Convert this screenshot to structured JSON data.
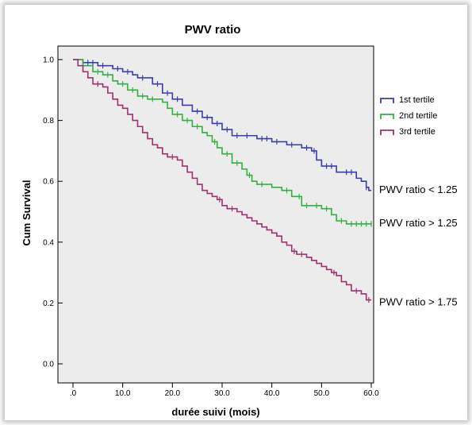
{
  "chart_data": {
    "type": "line",
    "subtype": "kaplan-meier step",
    "title": "PWV ratio",
    "xlabel": "durée suivi (mois)",
    "ylabel": "Cum Survival",
    "xlim": [
      0,
      60
    ],
    "ylim": [
      0,
      1
    ],
    "x_ticks": [
      0,
      10,
      20,
      30,
      40,
      50,
      60
    ],
    "x_tick_labels": [
      ".0",
      "10.0",
      "20.0",
      "30.0",
      "40.0",
      "50.0",
      "60.0"
    ],
    "y_ticks": [
      0,
      0.2,
      0.4,
      0.6,
      0.8,
      1.0
    ],
    "y_tick_labels": [
      "0.0",
      "0.2",
      "0.4",
      "0.6",
      "0.8",
      "1.0"
    ],
    "grid": false,
    "plot_background": "#ececec",
    "legend_position": "right",
    "series": [
      {
        "name": "1st tertile",
        "color": "#3a3db0",
        "points": [
          [
            0,
            1.0
          ],
          [
            2,
            0.99
          ],
          [
            5,
            0.98
          ],
          [
            8,
            0.97
          ],
          [
            10,
            0.96
          ],
          [
            12,
            0.95
          ],
          [
            13,
            0.94
          ],
          [
            16,
            0.92
          ],
          [
            18,
            0.89
          ],
          [
            20,
            0.87
          ],
          [
            22,
            0.85
          ],
          [
            24,
            0.83
          ],
          [
            26,
            0.81
          ],
          [
            28,
            0.79
          ],
          [
            30,
            0.77
          ],
          [
            32,
            0.75
          ],
          [
            37,
            0.74
          ],
          [
            40,
            0.73
          ],
          [
            43,
            0.72
          ],
          [
            46,
            0.71
          ],
          [
            48,
            0.7
          ],
          [
            49,
            0.67
          ],
          [
            50,
            0.65
          ],
          [
            53,
            0.63
          ],
          [
            57,
            0.61
          ],
          [
            58,
            0.6
          ],
          [
            59,
            0.58
          ],
          [
            59.5,
            0.57
          ],
          [
            60,
            0.57
          ]
        ],
        "censor_x": [
          3,
          4,
          6,
          9,
          11,
          14,
          17,
          19,
          21,
          25,
          27,
          29,
          31,
          33,
          35,
          38,
          39,
          41,
          44,
          47,
          48.5,
          51,
          52,
          55,
          56,
          59
        ]
      },
      {
        "name": "2nd tertile",
        "color": "#33b040",
        "points": [
          [
            0,
            1.0
          ],
          [
            2,
            0.98
          ],
          [
            4,
            0.96
          ],
          [
            6,
            0.95
          ],
          [
            8,
            0.93
          ],
          [
            9,
            0.92
          ],
          [
            11,
            0.9
          ],
          [
            13,
            0.88
          ],
          [
            15,
            0.87
          ],
          [
            18,
            0.86
          ],
          [
            19,
            0.84
          ],
          [
            20,
            0.82
          ],
          [
            22,
            0.8
          ],
          [
            24,
            0.78
          ],
          [
            26,
            0.76
          ],
          [
            27,
            0.75
          ],
          [
            28,
            0.73
          ],
          [
            29,
            0.71
          ],
          [
            30,
            0.69
          ],
          [
            32,
            0.66
          ],
          [
            34,
            0.64
          ],
          [
            35,
            0.62
          ],
          [
            36,
            0.6
          ],
          [
            37,
            0.59
          ],
          [
            40,
            0.58
          ],
          [
            42,
            0.57
          ],
          [
            44,
            0.55
          ],
          [
            45,
            0.55
          ],
          [
            46,
            0.52
          ],
          [
            50,
            0.51
          ],
          [
            52,
            0.49
          ],
          [
            53,
            0.47
          ],
          [
            55,
            0.46
          ],
          [
            60,
            0.46
          ]
        ],
        "censor_x": [
          5,
          7,
          10,
          12,
          14,
          16,
          21,
          23,
          25,
          28.5,
          31,
          33,
          35.5,
          38,
          43,
          45.5,
          47,
          49,
          51,
          54,
          56,
          57,
          58,
          59,
          60
        ]
      },
      {
        "name": "3rd tertile",
        "color": "#a0306f",
        "points": [
          [
            0,
            1.0
          ],
          [
            1,
            0.98
          ],
          [
            2,
            0.96
          ],
          [
            3,
            0.94
          ],
          [
            4,
            0.92
          ],
          [
            6,
            0.91
          ],
          [
            7,
            0.89
          ],
          [
            8,
            0.87
          ],
          [
            9,
            0.85
          ],
          [
            10,
            0.84
          ],
          [
            11,
            0.82
          ],
          [
            12,
            0.8
          ],
          [
            13,
            0.78
          ],
          [
            14,
            0.76
          ],
          [
            15,
            0.74
          ],
          [
            16,
            0.72
          ],
          [
            17,
            0.71
          ],
          [
            18,
            0.69
          ],
          [
            19,
            0.68
          ],
          [
            21,
            0.67
          ],
          [
            22,
            0.65
          ],
          [
            23,
            0.63
          ],
          [
            24,
            0.61
          ],
          [
            25,
            0.59
          ],
          [
            26,
            0.57
          ],
          [
            27,
            0.56
          ],
          [
            28,
            0.55
          ],
          [
            29,
            0.54
          ],
          [
            30,
            0.52
          ],
          [
            31,
            0.51
          ],
          [
            33,
            0.5
          ],
          [
            34,
            0.49
          ],
          [
            35,
            0.48
          ],
          [
            36,
            0.47
          ],
          [
            37,
            0.46
          ],
          [
            38,
            0.45
          ],
          [
            39,
            0.44
          ],
          [
            40,
            0.43
          ],
          [
            41,
            0.42
          ],
          [
            42,
            0.4
          ],
          [
            43,
            0.39
          ],
          [
            44,
            0.37
          ],
          [
            45,
            0.36
          ],
          [
            47,
            0.35
          ],
          [
            48,
            0.34
          ],
          [
            49,
            0.33
          ],
          [
            50,
            0.32
          ],
          [
            51,
            0.31
          ],
          [
            52,
            0.3
          ],
          [
            53,
            0.29
          ],
          [
            54,
            0.27
          ],
          [
            55,
            0.26
          ],
          [
            56,
            0.24
          ],
          [
            58,
            0.23
          ],
          [
            59,
            0.21
          ],
          [
            60,
            0.21
          ]
        ],
        "censor_x": [
          5,
          20,
          29.5,
          32,
          44.5,
          46,
          52.5,
          57,
          59.5
        ]
      }
    ],
    "annotations": [
      {
        "text": "PWV ratio < 1.25",
        "y": 0.575
      },
      {
        "text": "PWV ratio > 1.25",
        "y": 0.465
      },
      {
        "text": "PWV ratio > 1.75",
        "y": 0.205
      }
    ]
  }
}
